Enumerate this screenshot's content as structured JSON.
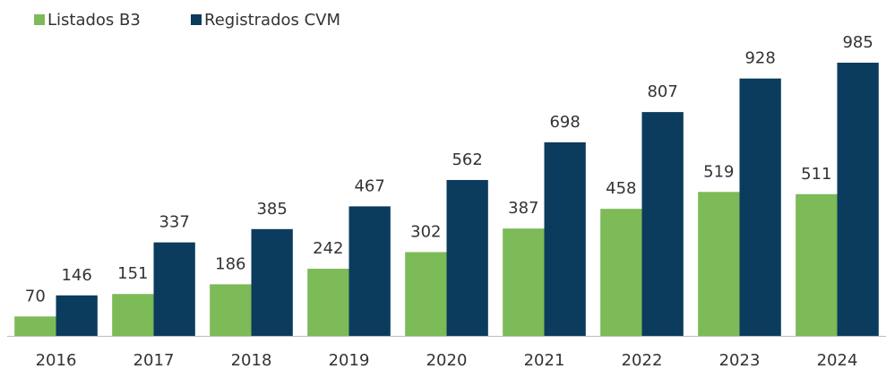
{
  "chart_data": {
    "type": "bar",
    "categories": [
      "2016",
      "2017",
      "2018",
      "2019",
      "2020",
      "2021",
      "2022",
      "2023",
      "2024"
    ],
    "series": [
      {
        "name": "Listados B3",
        "color": "#7dba58",
        "values": [
          70,
          151,
          186,
          242,
          302,
          387,
          458,
          519,
          511
        ]
      },
      {
        "name": "Registrados CVM",
        "color": "#0b3c5d",
        "values": [
          146,
          337,
          385,
          467,
          562,
          698,
          807,
          928,
          985
        ]
      }
    ],
    "legend": "top-left"
  }
}
